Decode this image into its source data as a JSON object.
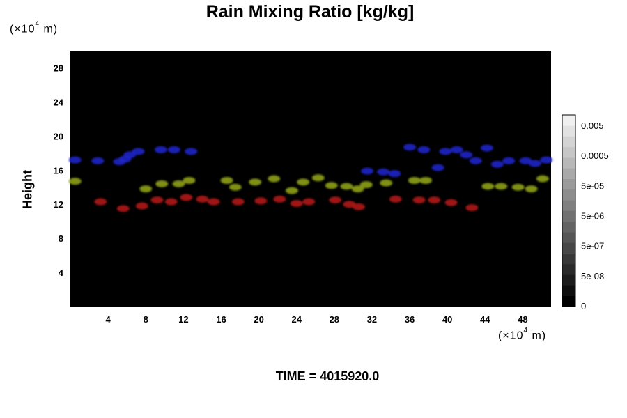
{
  "chart_data": {
    "type": "heatmap",
    "title": "Rain Mixing Ratio [kg/kg]",
    "xlabel": "",
    "ylabel": "Height",
    "x_unit": {
      "prefix": "(×10",
      "exponent": "4",
      "suffix": " m)"
    },
    "y_unit": {
      "prefix": "(×10",
      "exponent": "4",
      "suffix": " m)"
    },
    "xlim": [
      0,
      51
    ],
    "ylim": [
      0,
      30
    ],
    "x_ticks": [
      4,
      8,
      12,
      16,
      20,
      24,
      28,
      32,
      36,
      40,
      44,
      48
    ],
    "y_ticks": [
      4,
      8,
      12,
      16,
      20,
      24,
      28
    ],
    "background": "#000000",
    "colorbar": {
      "tick_labels": [
        "0.005",
        "0.0005",
        "5e-05",
        "5e-06",
        "5e-07",
        "5e-08",
        "0"
      ],
      "levels": 18,
      "color_low": "#000000",
      "color_high": "#f0f0f0"
    },
    "features": [
      {
        "band": "blue",
        "color": "#1f26c8",
        "points": [
          [
            0.5,
            17.2
          ],
          [
            2.9,
            17.1
          ],
          [
            5.2,
            17.0
          ],
          [
            5.8,
            17.3
          ],
          [
            6.3,
            17.8
          ],
          [
            7.2,
            18.2
          ],
          [
            9.6,
            18.4
          ],
          [
            11.0,
            18.4
          ],
          [
            12.8,
            18.2
          ],
          [
            36.0,
            18.7
          ],
          [
            37.5,
            18.4
          ],
          [
            39.8,
            18.2
          ],
          [
            41.0,
            18.4
          ],
          [
            42.0,
            17.8
          ],
          [
            43.0,
            17.1
          ],
          [
            44.2,
            18.6
          ],
          [
            45.3,
            16.7
          ],
          [
            46.5,
            17.1
          ],
          [
            48.3,
            17.1
          ],
          [
            49.3,
            16.8
          ],
          [
            50.5,
            17.2
          ],
          [
            33.2,
            15.8
          ],
          [
            34.4,
            15.6
          ],
          [
            31.5,
            15.9
          ],
          [
            39.0,
            16.3
          ]
        ]
      },
      {
        "band": "yellow-green",
        "color": "#8ea01a",
        "points": [
          [
            8.0,
            13.8
          ],
          [
            9.7,
            14.4
          ],
          [
            11.5,
            14.4
          ],
          [
            12.6,
            14.8
          ],
          [
            16.6,
            14.8
          ],
          [
            17.5,
            14.0
          ],
          [
            19.6,
            14.6
          ],
          [
            21.6,
            15.0
          ],
          [
            23.5,
            13.6
          ],
          [
            24.7,
            14.6
          ],
          [
            26.3,
            15.1
          ],
          [
            27.7,
            14.2
          ],
          [
            29.3,
            14.1
          ],
          [
            30.5,
            13.8
          ],
          [
            31.4,
            14.3
          ],
          [
            33.5,
            14.5
          ],
          [
            36.5,
            14.8
          ],
          [
            37.7,
            14.8
          ],
          [
            44.3,
            14.1
          ],
          [
            45.7,
            14.1
          ],
          [
            47.5,
            14.0
          ],
          [
            48.9,
            13.8
          ],
          [
            50.1,
            15.0
          ],
          [
            0.5,
            14.7
          ]
        ]
      },
      {
        "band": "red",
        "color": "#b01515",
        "points": [
          [
            3.2,
            12.3
          ],
          [
            5.6,
            11.5
          ],
          [
            7.6,
            11.8
          ],
          [
            9.2,
            12.5
          ],
          [
            10.7,
            12.3
          ],
          [
            12.3,
            12.8
          ],
          [
            14.0,
            12.6
          ],
          [
            15.2,
            12.3
          ],
          [
            17.8,
            12.3
          ],
          [
            20.2,
            12.4
          ],
          [
            22.2,
            12.6
          ],
          [
            24.0,
            12.1
          ],
          [
            25.3,
            12.3
          ],
          [
            28.1,
            12.5
          ],
          [
            29.6,
            12.0
          ],
          [
            30.6,
            11.7
          ],
          [
            34.5,
            12.6
          ],
          [
            37.0,
            12.5
          ],
          [
            38.6,
            12.5
          ],
          [
            40.4,
            12.2
          ],
          [
            42.6,
            11.6
          ]
        ]
      }
    ],
    "annotation": "TIME = 4015920.0"
  }
}
